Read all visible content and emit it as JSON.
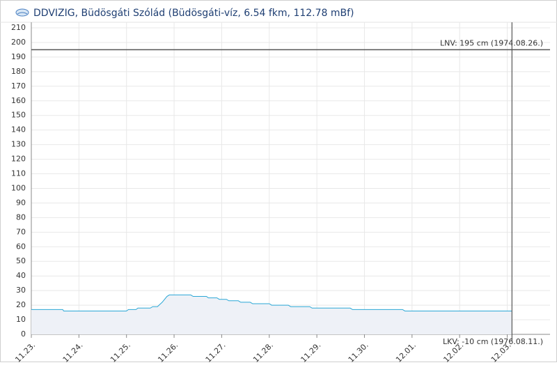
{
  "chart_data": {
    "type": "area",
    "title": "DDVIZIG, Büdösgáti Szólád (Büdösgáti-víz, 6.54 fkm, 112.78 mBf)",
    "x": [
      0,
      0.66,
      0.68,
      2.0,
      2.04,
      2.2,
      2.24,
      2.5,
      2.55,
      2.65,
      2.75,
      2.85,
      2.9,
      3.35,
      3.4,
      3.68,
      3.72,
      3.9,
      3.95,
      4.1,
      4.15,
      4.35,
      4.4,
      4.6,
      4.65,
      5.0,
      5.05,
      5.4,
      5.45,
      5.85,
      5.9,
      6.7,
      6.75,
      7.8,
      7.85,
      10.1
    ],
    "series": [
      {
        "color": "#2aa7d6",
        "values": [
          17,
          17,
          16,
          16,
          17,
          17,
          18,
          18,
          19,
          19,
          22,
          26,
          27,
          27,
          26,
          26,
          25,
          25,
          24,
          24,
          23,
          23,
          22,
          22,
          21,
          21,
          20,
          20,
          19,
          19,
          18,
          18,
          17,
          17,
          16,
          16
        ]
      }
    ],
    "xlim": [
      0,
      10.9
    ],
    "xticks": [
      {
        "value": 0,
        "label": "11.23."
      },
      {
        "value": 1,
        "label": "11.24."
      },
      {
        "value": 2,
        "label": "11.25."
      },
      {
        "value": 3,
        "label": "11.26."
      },
      {
        "value": 4,
        "label": "11.27."
      },
      {
        "value": 5,
        "label": "11.28."
      },
      {
        "value": 6,
        "label": "11.29."
      },
      {
        "value": 7,
        "label": "11.30."
      },
      {
        "value": 8,
        "label": "12.01."
      },
      {
        "value": 9,
        "label": "12.02."
      },
      {
        "value": 10,
        "label": "12.03."
      }
    ],
    "ylim": [
      0,
      210
    ],
    "yticks": [
      0,
      10,
      20,
      30,
      40,
      50,
      60,
      70,
      80,
      90,
      100,
      110,
      120,
      130,
      140,
      150,
      160,
      170,
      180,
      190,
      200,
      210
    ],
    "grid": true,
    "reference_lines": [
      {
        "label": "LNV: 195 cm (1974.08.26.)",
        "value": 195
      }
    ],
    "bottom_note": "LKV: -10 cm (1976.08.11.)",
    "now_x": 10.1
  }
}
